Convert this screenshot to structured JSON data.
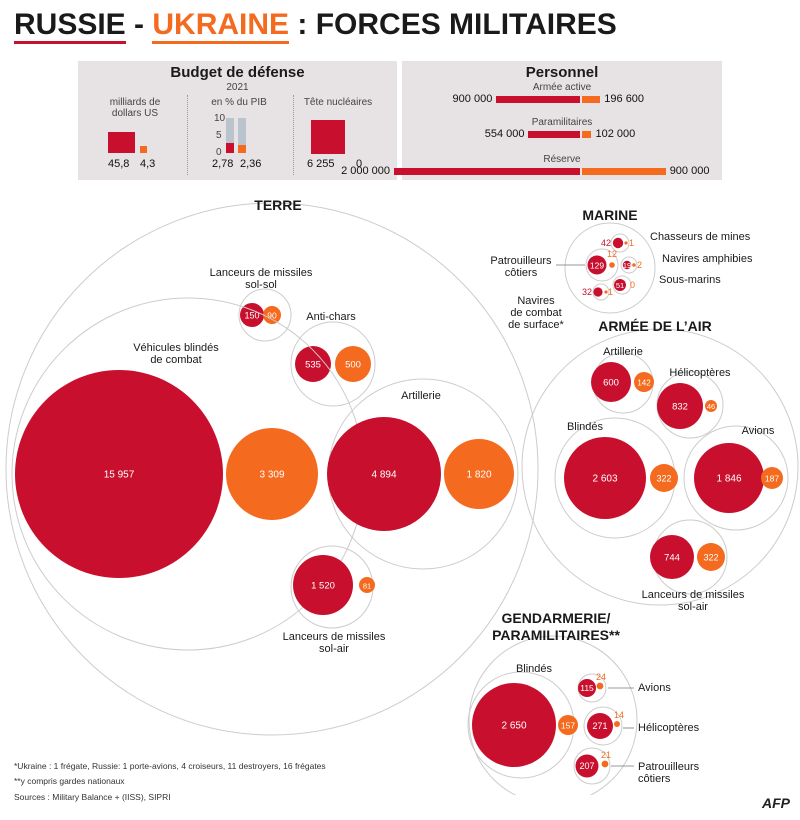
{
  "header": {
    "title_ru": "RUSSIE",
    "title_sep": " - ",
    "title_ua": "UKRAINE",
    "title_rest": " : FORCES MILITAIRES"
  },
  "colors": {
    "russia": "#c8102e",
    "ukraine": "#f46a1f",
    "panel": "#e7e2e3",
    "ring": "#cccccc"
  },
  "budget": {
    "title": "Budget de défense",
    "year": "2021",
    "usd_label": "milliards de dollars US",
    "usd_ru": "45,8",
    "usd_ua": "4,3",
    "pib_label": "en % du PIB",
    "pib_ticks": [
      "10",
      "5",
      "0"
    ],
    "pib_ru": "2,78",
    "pib_ua": "2,36",
    "pib_ru_value": 2.78,
    "pib_ua_value": 2.36,
    "nuke_label": "Tête nucléaires",
    "nuke_ru": "6 255",
    "nuke_ua": "0"
  },
  "personnel": {
    "title": "Personnel",
    "rows": [
      {
        "label": "Armée active",
        "ru": "900 000",
        "ua": "196 600",
        "ru_value": 900000,
        "ua_value": 196600
      },
      {
        "label": "Paramilitaires",
        "ru": "554 000",
        "ua": "102 000",
        "ru_value": 554000,
        "ua_value": 102000
      },
      {
        "label": "Réserve",
        "ru": "2 000 000",
        "ua": "900 000",
        "ru_value": 2000000,
        "ua_value": 900000
      }
    ]
  },
  "terre": {
    "title": "Terre",
    "groups": [
      {
        "label": "Lanceurs de missiles sol-sol",
        "ru": "150",
        "ua": "90",
        "ru_value": 150,
        "ua_value": 90
      },
      {
        "label": "Anti-chars",
        "ru": "535",
        "ua": "500",
        "ru_value": 535,
        "ua_value": 500
      },
      {
        "label": "Véhicules blindés de combat",
        "ru": "15 957",
        "ua": "3 309",
        "ru_value": 15957,
        "ua_value": 3309
      },
      {
        "label": "Artillerie",
        "ru": "4 894",
        "ua": "1 820",
        "ru_value": 4894,
        "ua_value": 1820
      },
      {
        "label": "Lanceurs de missiles sol-air",
        "ru": "1 520",
        "ua": "81",
        "ru_value": 1520,
        "ua_value": 81
      }
    ]
  },
  "marine": {
    "title": "Marine",
    "groups": [
      {
        "label": "Chasseurs de mines",
        "ru": "42",
        "ua": "1",
        "ru_value": 42,
        "ua_value": 1
      },
      {
        "label": "Patrouilleurs côtiers",
        "ru": "129",
        "ua": "12",
        "ru_value": 129,
        "ua_value": 12
      },
      {
        "label": "Navires amphibies",
        "ru": "19",
        "ua": "2",
        "ru_value": 19,
        "ua_value": 2
      },
      {
        "label": "Sous-marins",
        "ru": "51",
        "ua": "0",
        "ru_value": 51,
        "ua_value": 0
      },
      {
        "label": "Navires de combat de surface*",
        "ru": "32",
        "ua": "1",
        "ru_value": 32,
        "ua_value": 1
      }
    ]
  },
  "air": {
    "title": "Armée de l’air",
    "groups": [
      {
        "label": "Artillerie",
        "ru": "600",
        "ua": "142",
        "ru_value": 600,
        "ua_value": 142
      },
      {
        "label": "Hélicoptères",
        "ru": "832",
        "ua": "46",
        "ru_value": 832,
        "ua_value": 46
      },
      {
        "label": "Blindés",
        "ru": "2 603",
        "ua": "322",
        "ru_value": 2603,
        "ua_value": 322
      },
      {
        "label": "Avions",
        "ru": "1 846",
        "ua": "187",
        "ru_value": 1846,
        "ua_value": 187
      },
      {
        "label": "Lanceurs de missiles sol-air",
        "ru": "744",
        "ua": "322",
        "ru_value": 744,
        "ua_value": 322
      }
    ]
  },
  "gendarmerie": {
    "title_line1": "Gendarmerie/",
    "title_line2": "Paramilitaires**",
    "groups": [
      {
        "label": "Blindés",
        "ru": "2 650",
        "ua": "157",
        "ru_value": 2650,
        "ua_value": 157
      },
      {
        "label": "Avions",
        "ru": "115",
        "ua": "24",
        "ru_value": 115,
        "ua_value": 24
      },
      {
        "label": "Hélicoptères",
        "ru": "271",
        "ua": "14",
        "ru_value": 271,
        "ua_value": 14
      },
      {
        "label": "Patrouilleurs côtiers",
        "ru": "207",
        "ua": "21",
        "ru_value": 207,
        "ua_value": 21
      }
    ]
  },
  "footnotes": {
    "f1": "*Ukraine : 1 frégate, Russie: 1 porte-avions, 4 croiseurs, 11 destroyers, 16 frégates",
    "f2": "**y compris gardes nationaux",
    "sources": "Sources : Military Balance +  (IISS), SIPRI"
  },
  "credit": "AFP"
}
